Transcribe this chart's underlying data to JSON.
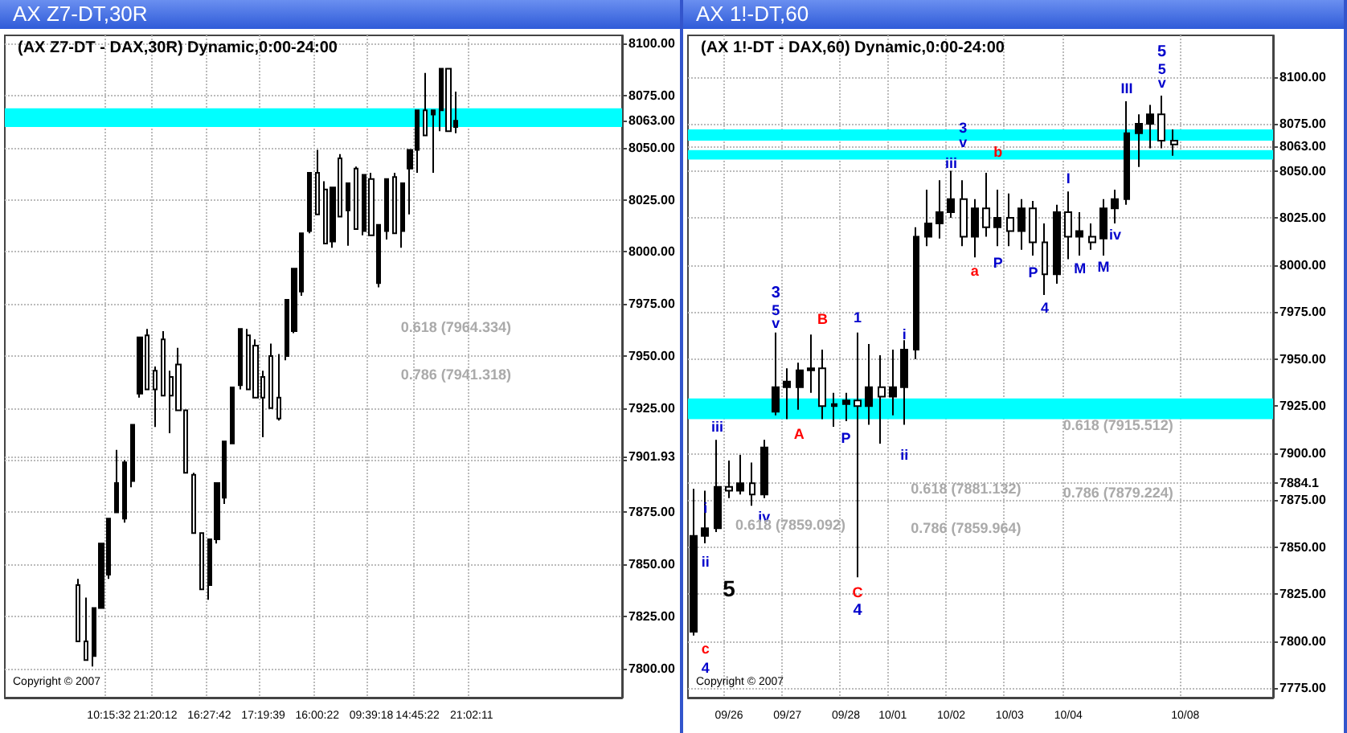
{
  "chart_data": [
    {
      "type": "candlestick",
      "title": "AX Z7-DT,30R",
      "subtitle": "(AX Z7-DT - DAX,30R) Dynamic,0:00-24:00",
      "color": "#000000",
      "grid": true,
      "categories": [
        null,
        null,
        null,
        null,
        null,
        null,
        null,
        null,
        null,
        null,
        null,
        null,
        null,
        "10:15:32",
        null,
        null,
        null,
        null,
        null,
        "21:20:12",
        null,
        null,
        null,
        null,
        null,
        null,
        "16:27:42",
        null,
        null,
        null,
        null,
        null,
        null,
        "17:19:39",
        null,
        null,
        null,
        null,
        null,
        null,
        "16:00:22",
        null,
        null,
        null,
        null,
        null,
        null,
        "09:39:18",
        null,
        null,
        null,
        null,
        null,
        "14:45:22",
        null,
        null,
        null,
        null,
        null,
        null,
        "21:02:11",
        null,
        null,
        null,
        null,
        null,
        null,
        null,
        null,
        null,
        null,
        null,
        null,
        null,
        null,
        null,
        null,
        null,
        null,
        null
      ],
      "ohlc": [
        null,
        null,
        null,
        null,
        null,
        null,
        null,
        null,
        null,
        [
          7840,
          7843,
          7813,
          7813
        ],
        [
          7813,
          7834,
          7804,
          7804
        ],
        [
          7806,
          7829,
          7801,
          7829
        ],
        [
          7829,
          7860,
          7829,
          7860
        ],
        [
          7845,
          7872,
          7843,
          7872
        ],
        [
          7875,
          7905,
          7875,
          7889
        ],
        [
          7872,
          7900,
          7870,
          7899
        ],
        [
          7890,
          7917,
          7887,
          7917
        ],
        [
          7932,
          7959,
          7930,
          7959
        ],
        [
          7960,
          7963,
          7934,
          7934
        ],
        [
          7943,
          7945,
          7916,
          7934
        ],
        [
          7958,
          7962,
          7931,
          7931
        ],
        [
          7940,
          7943,
          7913,
          7931
        ],
        [
          7946,
          7954,
          7924,
          7924
        ],
        [
          7924,
          7924,
          7894,
          7894
        ],
        [
          7893,
          7894,
          7865,
          7865
        ],
        [
          7865,
          7865,
          7838,
          7838
        ],
        [
          7840,
          7862,
          7833,
          7862
        ],
        [
          7862,
          7889,
          7860,
          7889
        ],
        [
          7882,
          7909,
          7879,
          7909
        ],
        [
          7908,
          7935,
          7908,
          7935
        ],
        [
          7936,
          7963,
          7934,
          7963
        ],
        [
          7960,
          7963,
          7934,
          7934
        ],
        [
          7955,
          7958,
          7930,
          7930
        ],
        [
          7940,
          7943,
          7911,
          7930
        ],
        [
          7950,
          7956,
          7925,
          7925
        ],
        [
          7930,
          7951,
          7919,
          7920
        ],
        [
          7950,
          7977,
          7948,
          7977
        ],
        [
          7962,
          7992,
          7961,
          7992
        ],
        [
          7981,
          8009,
          7979,
          8009
        ],
        [
          8010,
          8038,
          8009,
          8038
        ],
        [
          8038,
          8049,
          8018,
          8018
        ],
        [
          8030,
          8034,
          8004,
          8004
        ],
        [
          8005,
          8031,
          8002,
          8031
        ],
        [
          8045,
          8047,
          8017,
          8017
        ],
        [
          8020,
          8033,
          8003,
          8033
        ],
        [
          8040,
          8041,
          8011,
          8011
        ],
        [
          8010,
          8037,
          8008,
          8037
        ],
        [
          8035,
          8038,
          8008,
          8008
        ],
        [
          7985,
          8013,
          7983,
          8013
        ],
        [
          8010,
          8035,
          8006,
          8035
        ],
        [
          8036,
          8038,
          8009,
          8009
        ],
        [
          8010,
          8033,
          8002,
          8033
        ],
        [
          8040,
          8049,
          8018,
          8049
        ],
        [
          8049,
          8068,
          8038,
          8068
        ],
        [
          8068,
          8086,
          8056,
          8056
        ],
        [
          8066,
          8068,
          8038,
          8068
        ],
        [
          8068,
          8088,
          8058,
          8088
        ],
        [
          8088,
          8088,
          8058,
          8058
        ],
        [
          8060,
          8077,
          8057,
          8063
        ],
        null,
        null,
        null,
        null,
        null,
        null,
        null,
        null,
        null,
        null,
        null,
        null,
        null,
        null,
        null,
        null,
        null,
        null,
        null,
        null,
        null
      ],
      "ylim": [
        7786,
        8104
      ],
      "yticks": [
        {
          "value": 7800,
          "label": "7800.00"
        },
        {
          "value": 7825,
          "label": "7825.00"
        },
        {
          "value": 7850,
          "label": "7850.00"
        },
        {
          "value": 7875,
          "label": "7875.00"
        },
        {
          "value": 7900,
          "label": null
        },
        {
          "value": 7901.93,
          "label": "7901.93"
        },
        {
          "value": 7925,
          "label": "7925.00"
        },
        {
          "value": 7950,
          "label": "7950.00"
        },
        {
          "value": 7975,
          "label": "7975.00"
        },
        {
          "value": 8000,
          "label": "8000.00"
        },
        {
          "value": 8025,
          "label": "8025.00"
        },
        {
          "value": 8050,
          "label": "8050.00"
        },
        {
          "value": 8063,
          "label": "8063.00"
        },
        {
          "value": 8075,
          "label": "8075.00"
        },
        {
          "value": 8100,
          "label": "8100.00"
        }
      ],
      "bands": [
        {
          "axis": "y",
          "from": 8060,
          "to": 8069,
          "color": "#00ffff"
        }
      ],
      "annotations": [
        "0.618 (7964.334)",
        "0.786 (7941.318)",
        "Copyright © 2007"
      ]
    },
    {
      "type": "candlestick",
      "title": "AX 1!-DT,60",
      "subtitle": "(AX 1!-DT - DAX,60) Dynamic,0:00-24:00",
      "color": "#000000",
      "grid": true,
      "categories": [
        null,
        null,
        null,
        "09/26",
        null,
        null,
        null,
        null,
        "09/27",
        null,
        null,
        null,
        null,
        "09/28",
        null,
        null,
        null,
        "10/01",
        null,
        null,
        null,
        null,
        "10/02",
        null,
        null,
        null,
        null,
        "10/03",
        null,
        null,
        null,
        null,
        "10/04",
        null,
        null,
        null,
        null,
        null,
        null,
        null,
        null,
        null,
        "10/08",
        null,
        null,
        null,
        null,
        null,
        null,
        null
      ],
      "ohlc": [
        [
          7805,
          7881,
          7803,
          7856
        ],
        [
          7856,
          7880,
          7852,
          7860
        ],
        [
          7860,
          7907,
          7858,
          7882
        ],
        [
          7882,
          7896,
          7876,
          7880
        ],
        [
          7880,
          7899,
          7878,
          7884
        ],
        [
          7884,
          7895,
          7872,
          7878
        ],
        [
          7878,
          7907,
          7876,
          7903
        ],
        [
          7922,
          7964,
          7920,
          7935
        ],
        [
          7935,
          7945,
          7918,
          7938
        ],
        [
          7935,
          7948,
          7923,
          7944
        ],
        [
          7944,
          7963,
          7932,
          7945
        ],
        [
          7945,
          7955,
          7918,
          7925
        ],
        [
          7925,
          7932,
          7914,
          7926
        ],
        [
          7926,
          7932,
          7917,
          7928
        ],
        [
          7928,
          7964,
          7834,
          7925
        ],
        [
          7925,
          7958,
          7915,
          7935
        ],
        [
          7935,
          7952,
          7905,
          7930
        ],
        [
          7930,
          7955,
          7920,
          7935
        ],
        [
          7935,
          7960,
          7915,
          7955
        ],
        [
          7955,
          8020,
          7950,
          8015
        ],
        [
          8015,
          8040,
          8010,
          8022
        ],
        [
          8022,
          8045,
          8014,
          8028
        ],
        [
          8028,
          8050,
          8025,
          8035
        ],
        [
          8035,
          8045,
          8010,
          8015
        ],
        [
          8015,
          8035,
          8004,
          8030
        ],
        [
          8030,
          8049,
          8015,
          8020
        ],
        [
          8020,
          8040,
          8010,
          8025
        ],
        [
          8025,
          8038,
          8010,
          8018
        ],
        [
          8018,
          8035,
          8008,
          8030
        ],
        [
          8030,
          8034,
          8005,
          8012
        ],
        [
          8012,
          8022,
          7984,
          7995
        ],
        [
          7995,
          8032,
          7990,
          8028
        ],
        [
          8028,
          8039,
          8003,
          8015
        ],
        [
          8015,
          8028,
          8005,
          8018
        ],
        [
          8015,
          8022,
          8008,
          8012
        ],
        [
          8014,
          8035,
          8005,
          8030
        ],
        [
          8030,
          8040,
          8022,
          8035
        ],
        [
          8035,
          8087,
          8032,
          8070
        ],
        [
          8070,
          8080,
          8052,
          8075
        ],
        [
          8075,
          8085,
          8062,
          8080
        ],
        [
          8080,
          8090,
          8062,
          8066
        ],
        [
          8066,
          8072,
          8058,
          8064
        ],
        null,
        null,
        null,
        null,
        null,
        null,
        null,
        null
      ],
      "ylim": [
        7770,
        8122
      ],
      "yticks": [
        {
          "value": 7775,
          "label": "7775.00"
        },
        {
          "value": 7800,
          "label": "7800.00"
        },
        {
          "value": 7825,
          "label": "7825.00"
        },
        {
          "value": 7850,
          "label": "7850.00"
        },
        {
          "value": 7875,
          "label": "7875.00"
        },
        {
          "value": 7884.1,
          "label": "7884.1"
        },
        {
          "value": 7900,
          "label": "7900.00"
        },
        {
          "value": 7925,
          "label": "7925.00"
        },
        {
          "value": 7950,
          "label": "7950.00"
        },
        {
          "value": 7975,
          "label": "7975.00"
        },
        {
          "value": 8000,
          "label": "8000.00"
        },
        {
          "value": 8025,
          "label": "8025.00"
        },
        {
          "value": 8050,
          "label": "8050.00"
        },
        {
          "value": 8063,
          "label": "8063.00"
        },
        {
          "value": 8075,
          "label": "8075.00"
        },
        {
          "value": 8100,
          "label": "8100.00"
        }
      ],
      "bands": [
        {
          "axis": "y",
          "from": 7918,
          "to": 7929,
          "color": "#00ffff"
        },
        {
          "axis": "y",
          "from": 8056,
          "to": 8061,
          "color": "#00ffff"
        },
        {
          "axis": "y",
          "from": 8066,
          "to": 8072,
          "color": "#00ffff"
        }
      ],
      "annotations": [
        "c",
        "4",
        "i",
        "ii",
        "iii",
        "5",
        "iv",
        "0.618 (7859.092)",
        "3",
        "5",
        "v",
        "A",
        "B",
        "P",
        "1",
        "C",
        "4",
        "i",
        "ii",
        "0.618 (7881.132)",
        "0.786 (7859.964)",
        "iii",
        "3",
        "v",
        "a",
        "b",
        "P",
        "P",
        "4",
        "I",
        "M",
        "M",
        "iv",
        "III",
        "5",
        "5",
        "v",
        "0.618 (7915.512)",
        "0.786 (7879.224)",
        "Copyright © 2007"
      ]
    }
  ]
}
